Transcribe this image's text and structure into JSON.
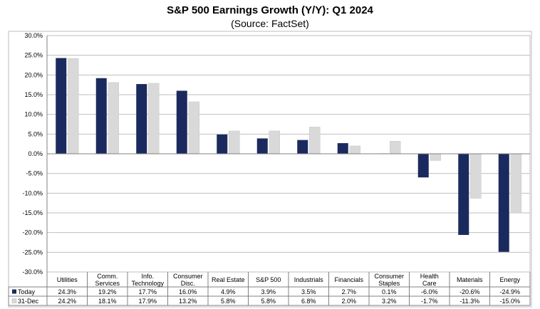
{
  "chart_data": {
    "type": "bar",
    "title": "S&P 500 Earnings Growth (Y/Y): Q1 2024",
    "subtitle": "(Source: FactSet)",
    "xlabel": "",
    "ylabel": "",
    "ylim": [
      -30,
      30
    ],
    "ytick_step": 5,
    "yticks": [
      "30.0%",
      "25.0%",
      "20.0%",
      "15.0%",
      "10.0%",
      "5.0%",
      "0.0%",
      "-5.0%",
      "-10.0%",
      "-15.0%",
      "-20.0%",
      "-25.0%",
      "-30.0%"
    ],
    "grid": true,
    "categories": [
      [
        "Utilities"
      ],
      [
        "Comm.",
        "Services"
      ],
      [
        "Info.",
        "Technology"
      ],
      [
        "Consumer",
        "Disc."
      ],
      [
        "Real Estate"
      ],
      [
        "S&P 500"
      ],
      [
        "Industrials"
      ],
      [
        "Financials"
      ],
      [
        "Consumer",
        "Staples"
      ],
      [
        "Health",
        "Care"
      ],
      [
        "Materials"
      ],
      [
        "Energy"
      ]
    ],
    "series": [
      {
        "name": "Today",
        "color": "#1b2a5e",
        "values": [
          24.3,
          19.2,
          17.7,
          16.0,
          4.9,
          3.9,
          3.5,
          2.7,
          0.1,
          -6.0,
          -20.6,
          -24.9
        ],
        "labels": [
          "24.3%",
          "19.2%",
          "17.7%",
          "16.0%",
          "4.9%",
          "3.9%",
          "3.5%",
          "2.7%",
          "0.1%",
          "-6.0%",
          "-20.6%",
          "-24.9%"
        ]
      },
      {
        "name": "31-Dec",
        "color": "#d9d9d9",
        "values": [
          24.2,
          18.1,
          17.9,
          13.2,
          5.8,
          5.8,
          6.8,
          2.0,
          3.2,
          -1.7,
          -11.3,
          -15.0
        ],
        "labels": [
          "24.2%",
          "18.1%",
          "17.9%",
          "13.2%",
          "5.8%",
          "5.8%",
          "6.8%",
          "2.0%",
          "3.2%",
          "-1.7%",
          "-11.3%",
          "-15.0%"
        ]
      }
    ]
  }
}
